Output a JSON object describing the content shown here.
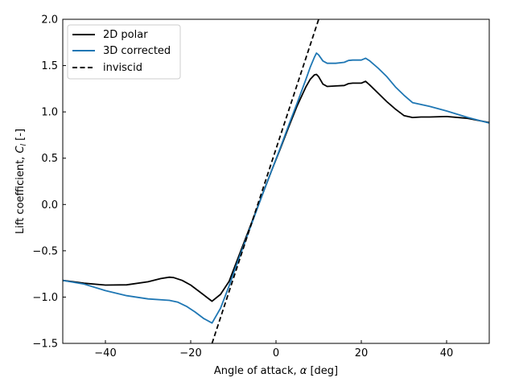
{
  "chart_data": {
    "type": "line",
    "xlabel_text": "Angle of attack, ",
    "xlabel_symbol": "α",
    "xlabel_unit": " [deg]",
    "ylabel_text": "Lift coefficient, ",
    "ylabel_symbol": "C",
    "ylabel_sub": "l",
    "ylabel_unit": " [-]",
    "xlim": [
      -50,
      50
    ],
    "ylim": [
      -1.5,
      2.0
    ],
    "xticks": [
      -40,
      -20,
      0,
      20,
      40
    ],
    "xtick_labels": [
      "−40",
      "−20",
      "0",
      "20",
      "40"
    ],
    "yticks": [
      -1.5,
      -1.0,
      -0.5,
      0.0,
      0.5,
      1.0,
      1.5,
      2.0
    ],
    "ytick_labels": [
      "−1.5",
      "−1.0",
      "−0.5",
      "0.0",
      "0.5",
      "1.0",
      "1.5",
      "2.0"
    ],
    "grid": false,
    "legend_position": "top-left",
    "series": [
      {
        "name": "2D polar",
        "color": "#000000",
        "dash": "solid",
        "x": [
          -50,
          -45,
          -40,
          -35,
          -30,
          -27,
          -25,
          -24,
          -22,
          -20,
          -18,
          -16,
          -15,
          -13,
          -11,
          -9,
          -7,
          -5,
          -3,
          -1,
          1,
          3,
          5,
          7,
          8,
          9,
          9.5,
          10,
          11,
          12,
          14,
          16,
          17,
          18,
          20,
          21,
          22,
          24,
          26,
          28,
          30,
          32,
          34,
          36,
          40,
          45,
          50
        ],
        "y": [
          -0.82,
          -0.85,
          -0.87,
          -0.868,
          -0.835,
          -0.8,
          -0.785,
          -0.79,
          -0.82,
          -0.87,
          -0.94,
          -1.01,
          -1.045,
          -0.97,
          -0.83,
          -0.59,
          -0.35,
          -0.11,
          0.13,
          0.37,
          0.6,
          0.84,
          1.07,
          1.27,
          1.35,
          1.4,
          1.405,
          1.38,
          1.3,
          1.275,
          1.28,
          1.285,
          1.305,
          1.31,
          1.31,
          1.33,
          1.29,
          1.2,
          1.11,
          1.03,
          0.96,
          0.94,
          0.945,
          0.945,
          0.95,
          0.93,
          0.885
        ]
      },
      {
        "name": "3D corrected",
        "color": "#1f77b4",
        "dash": "solid",
        "x": [
          -50,
          -45,
          -40,
          -35,
          -30,
          -25,
          -23,
          -21,
          -19,
          -17,
          -15,
          -13,
          -11,
          -9,
          -7,
          -5,
          -3,
          -1,
          1,
          3,
          5,
          7,
          8,
          9,
          9.5,
          10,
          11,
          12,
          14,
          16,
          17,
          18,
          20,
          21,
          22,
          24,
          26,
          28,
          30,
          32,
          36,
          40,
          45,
          50
        ],
        "y": [
          -0.82,
          -0.86,
          -0.93,
          -0.985,
          -1.02,
          -1.035,
          -1.055,
          -1.1,
          -1.16,
          -1.23,
          -1.28,
          -1.12,
          -0.88,
          -0.62,
          -0.37,
          -0.12,
          0.13,
          0.37,
          0.61,
          0.86,
          1.1,
          1.35,
          1.48,
          1.59,
          1.635,
          1.615,
          1.55,
          1.525,
          1.525,
          1.535,
          1.555,
          1.56,
          1.56,
          1.58,
          1.55,
          1.47,
          1.38,
          1.27,
          1.18,
          1.1,
          1.06,
          1.01,
          0.94,
          0.88
        ]
      },
      {
        "name": "inviscid",
        "color": "#000000",
        "dash": "dashed",
        "x": [
          -15,
          10
        ],
        "y": [
          -1.5,
          2.0
        ]
      }
    ]
  }
}
